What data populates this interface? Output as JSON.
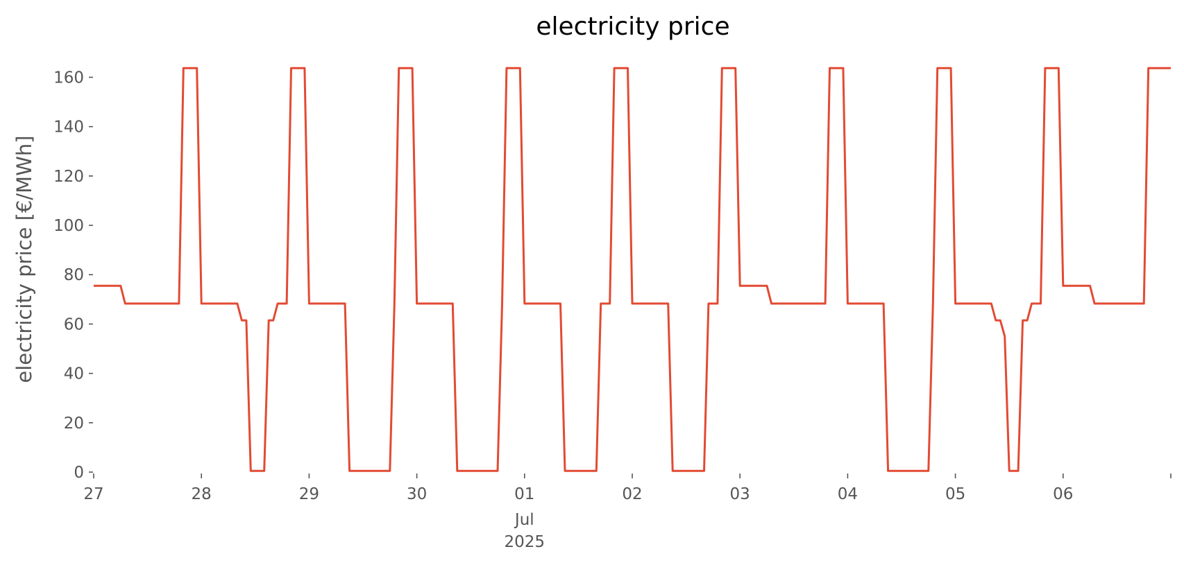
{
  "chart_data": {
    "type": "line",
    "title": "electricity price",
    "ylabel": "electricity price [€/MWh]",
    "xlabel": "",
    "ylim": [
      0,
      168
    ],
    "xlim": [
      "2025-06-27 00:00",
      "2025-07-07 00:00"
    ],
    "yticks": [
      0,
      20,
      40,
      60,
      80,
      100,
      120,
      140,
      160
    ],
    "xticks": [
      {
        "date": "2025-06-27",
        "label": "27"
      },
      {
        "date": "2025-06-28",
        "label": "28"
      },
      {
        "date": "2025-06-29",
        "label": "29"
      },
      {
        "date": "2025-06-30",
        "label": "30"
      },
      {
        "date": "2025-07-01",
        "label": "01",
        "sublabels": [
          "Jul",
          "2025"
        ]
      },
      {
        "date": "2025-07-02",
        "label": "02"
      },
      {
        "date": "2025-07-03",
        "label": "03"
      },
      {
        "date": "2025-07-04",
        "label": "04"
      },
      {
        "date": "2025-07-05",
        "label": "05"
      },
      {
        "date": "2025-07-06",
        "label": "06"
      },
      {
        "date": "2025-07-07",
        "label": ""
      }
    ],
    "grid": false,
    "color": "#e24a33",
    "series": [
      {
        "name": "",
        "x": [
          "2025-06-27 00:00",
          "2025-06-27 06:00",
          "2025-06-27 07:00",
          "2025-06-27 19:00",
          "2025-06-27 20:00",
          "2025-06-27 23:00",
          "2025-06-28 00:00",
          "2025-06-28 08:00",
          "2025-06-28 09:00",
          "2025-06-28 10:00",
          "2025-06-28 11:00",
          "2025-06-28 14:00",
          "2025-06-28 15:00",
          "2025-06-28 16:00",
          "2025-06-28 17:00",
          "2025-06-28 19:00",
          "2025-06-28 20:00",
          "2025-06-28 23:00",
          "2025-06-29 00:00",
          "2025-06-29 08:00",
          "2025-06-29 09:00",
          "2025-06-29 18:00",
          "2025-06-29 19:00",
          "2025-06-29 20:00",
          "2025-06-29 23:00",
          "2025-06-30 00:00",
          "2025-06-30 08:00",
          "2025-06-30 09:00",
          "2025-06-30 18:00",
          "2025-06-30 19:00",
          "2025-06-30 20:00",
          "2025-06-30 23:00",
          "2025-07-01 00:00",
          "2025-07-01 08:00",
          "2025-07-01 09:00",
          "2025-07-01 16:00",
          "2025-07-01 17:00",
          "2025-07-01 19:00",
          "2025-07-01 20:00",
          "2025-07-01 23:00",
          "2025-07-02 00:00",
          "2025-07-02 08:00",
          "2025-07-02 09:00",
          "2025-07-02 16:00",
          "2025-07-02 17:00",
          "2025-07-02 19:00",
          "2025-07-02 20:00",
          "2025-07-02 23:00",
          "2025-07-03 00:00",
          "2025-07-03 06:00",
          "2025-07-03 07:00",
          "2025-07-03 19:00",
          "2025-07-03 20:00",
          "2025-07-03 23:00",
          "2025-07-04 00:00",
          "2025-07-04 08:00",
          "2025-07-04 09:00",
          "2025-07-04 18:00",
          "2025-07-04 19:00",
          "2025-07-04 20:00",
          "2025-07-04 23:00",
          "2025-07-05 00:00",
          "2025-07-05 08:00",
          "2025-07-05 09:00",
          "2025-07-05 10:00",
          "2025-07-05 11:00",
          "2025-07-05 12:00",
          "2025-07-05 14:00",
          "2025-07-05 15:00",
          "2025-07-05 16:00",
          "2025-07-05 17:00",
          "2025-07-05 19:00",
          "2025-07-05 20:00",
          "2025-07-05 23:00",
          "2025-07-06 00:00",
          "2025-07-06 06:00",
          "2025-07-06 07:00",
          "2025-07-06 18:00",
          "2025-07-06 19:00",
          "2025-07-07 00:00"
        ],
        "y": [
          75.5,
          75.5,
          68.3,
          68.3,
          163.7,
          163.7,
          68.3,
          68.3,
          61.5,
          61.5,
          0.5,
          0.5,
          61.5,
          61.5,
          68.3,
          68.3,
          163.7,
          163.7,
          68.3,
          68.3,
          0.5,
          0.5,
          68.3,
          163.7,
          163.7,
          68.3,
          68.3,
          0.5,
          0.5,
          68.3,
          163.7,
          163.7,
          68.3,
          68.3,
          0.5,
          0.5,
          68.3,
          68.3,
          163.7,
          163.7,
          68.3,
          68.3,
          0.5,
          0.5,
          68.3,
          68.3,
          163.7,
          163.7,
          75.5,
          75.5,
          68.3,
          68.3,
          163.7,
          163.7,
          68.3,
          68.3,
          0.5,
          0.5,
          68.3,
          163.7,
          163.7,
          68.3,
          68.3,
          61.5,
          61.5,
          55.0,
          0.5,
          0.5,
          61.5,
          61.5,
          68.3,
          68.3,
          163.7,
          163.7,
          75.5,
          75.5,
          68.3,
          68.3,
          163.7,
          163.7
        ]
      }
    ]
  }
}
